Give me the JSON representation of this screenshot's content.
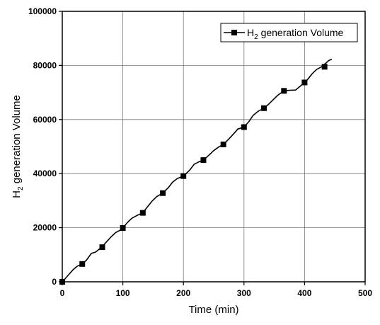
{
  "chart_data": {
    "type": "line",
    "title": "",
    "xlabel": "Time (min)",
    "ylabel_main": "H",
    "ylabel_sub": "2",
    "ylabel_rest": " generation Volume",
    "xlim": [
      0,
      500
    ],
    "ylim": [
      0,
      100000
    ],
    "x_ticks": [
      0,
      100,
      200,
      300,
      400,
      500
    ],
    "y_ticks": [
      0,
      20000,
      40000,
      60000,
      80000,
      100000
    ],
    "x_tick_labels": [
      "0",
      "100",
      "200",
      "300",
      "400",
      "500"
    ],
    "y_tick_labels": [
      "0",
      "20000",
      "40000",
      "60000",
      "80000",
      "100000"
    ],
    "grid": true,
    "legend": {
      "position": "top-right",
      "label_main": "H",
      "label_sub": "2",
      "label_rest": " generation Volume"
    },
    "series": [
      {
        "name": "H2 generation Volume",
        "color": "#000000",
        "marker": "square",
        "x": [
          0,
          5,
          10,
          18,
          25,
          33,
          40,
          48,
          55,
          65,
          72,
          80,
          88,
          95,
          100,
          107,
          115,
          125,
          133,
          140,
          148,
          156,
          166,
          175,
          182,
          190,
          200,
          210,
          218,
          225,
          233,
          242,
          250,
          258,
          266,
          275,
          282,
          290,
          300,
          308,
          315,
          323,
          333,
          340,
          348,
          356,
          366,
          375,
          385,
          392,
          400,
          405,
          412,
          420,
          428,
          435,
          440,
          445
        ],
        "y": [
          0,
          1200,
          2500,
          4500,
          5800,
          6600,
          8000,
          10500,
          11000,
          12800,
          14500,
          16500,
          18200,
          19000,
          19900,
          21800,
          23500,
          24700,
          25500,
          27500,
          29800,
          31500,
          32800,
          34800,
          36800,
          38200,
          39100,
          41200,
          43500,
          44300,
          45000,
          46800,
          48500,
          49800,
          50800,
          52800,
          54500,
          56500,
          57200,
          59200,
          61500,
          63000,
          64200,
          65500,
          67300,
          69000,
          70600,
          70800,
          70900,
          72200,
          73700,
          74800,
          76800,
          78500,
          79500,
          80800,
          81800,
          82300
        ],
        "marker_x": [
          0,
          33,
          66,
          100,
          133,
          166,
          200,
          233,
          266,
          300,
          333,
          366,
          400,
          433
        ],
        "marker_y": [
          0,
          6600,
          12800,
          19900,
          25500,
          32800,
          39100,
          45000,
          50800,
          57200,
          64200,
          70600,
          73700,
          79500
        ]
      }
    ]
  }
}
